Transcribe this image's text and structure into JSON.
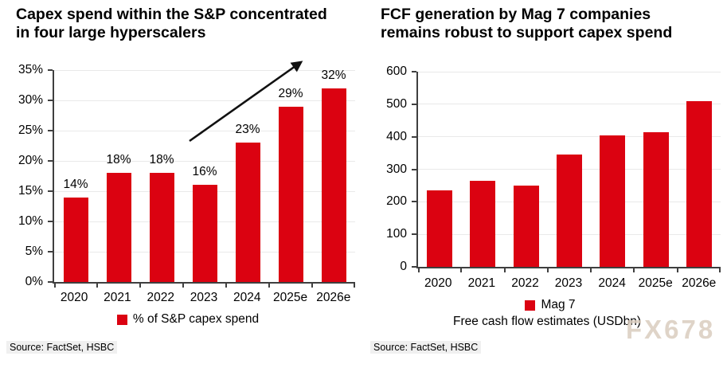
{
  "page": {
    "background": "#FFFFFF",
    "watermark": "FX678"
  },
  "colors": {
    "bar_red": "#DB0211",
    "axis": "#3F3F3F",
    "gridline": "#E9E9E9",
    "source_highlight": "#F0F0F0",
    "watermark_text": "#DACDBF",
    "arrow": "#111111"
  },
  "chart_data": [
    {
      "type": "bar",
      "title": "Capex spend within the S&P concentrated in four large hyperscalers",
      "title_lines": [
        "Capex spend within the S&P concentrated",
        "in four large hyperscalers"
      ],
      "categories": [
        "2020",
        "2021",
        "2022",
        "2023",
        "2024",
        "2025e",
        "2026e"
      ],
      "values": [
        14,
        18,
        18,
        16,
        23,
        29,
        32
      ],
      "value_labels": [
        "14%",
        "18%",
        "18%",
        "16%",
        "23%",
        "29%",
        "32%"
      ],
      "unit": "%",
      "ylim": [
        0,
        35
      ],
      "ytick_step": 5,
      "ytick_labels": [
        "35%",
        "30%",
        "25%",
        "20%",
        "15%",
        "10%",
        "5%",
        "0%"
      ],
      "grid": true,
      "legend": "% of S&P capex spend",
      "legend_position": "bottom",
      "annotation": "black upward trend arrow pointing from above the 2023 bar to the upper right",
      "source": "Source: FactSet, HSBC"
    },
    {
      "type": "bar",
      "title": "FCF generation by Mag 7 companies remains robust to support capex spend",
      "title_lines": [
        "FCF generation by Mag 7 companies",
        "remains robust to support capex spend"
      ],
      "categories": [
        "2020",
        "2021",
        "2022",
        "2023",
        "2024",
        "2025e",
        "2026e"
      ],
      "values": [
        235,
        265,
        250,
        345,
        405,
        415,
        510
      ],
      "unit": "USDbn",
      "ylim": [
        0,
        600
      ],
      "ytick_step": 100,
      "ytick_labels": [
        "600",
        "500",
        "400",
        "300",
        "200",
        "100",
        "0"
      ],
      "grid": true,
      "legend": "Mag 7",
      "legend_position": "bottom",
      "xlabel": "Free cash flow estimates (USDbn)",
      "source": "Source: FactSet, HSBC"
    }
  ]
}
